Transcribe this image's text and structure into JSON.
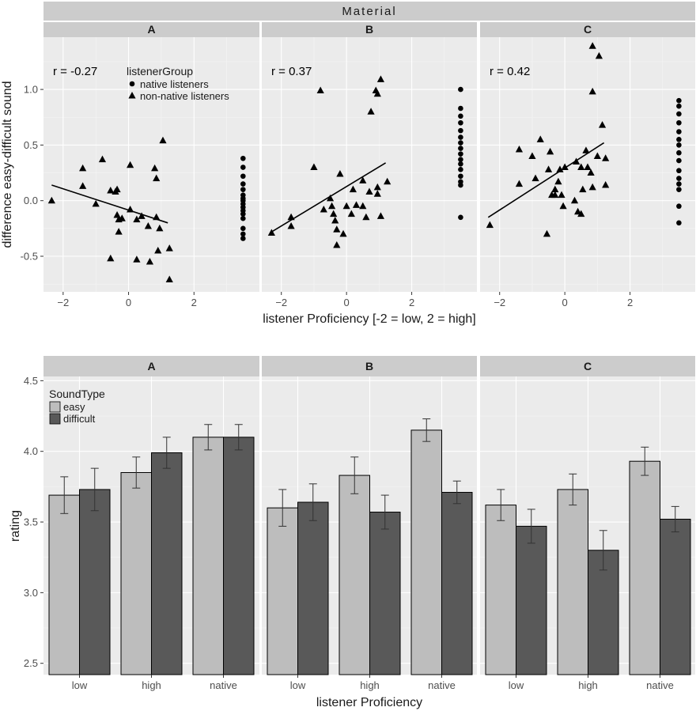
{
  "chart_data": [
    {
      "type": "scatter",
      "facet_title": "Material",
      "xlabel": "listener Proficiency [-2 = low, 2 = high]",
      "ylabel": "difference easy-difficult sound",
      "xlim": [
        -2.6,
        4.0
      ],
      "ylim": [
        -0.82,
        1.47
      ],
      "x_ticks": [
        -2,
        0,
        2
      ],
      "y_ticks": [
        -0.5,
        0.0,
        0.5,
        1.0
      ],
      "y_tick_labels": [
        "-0.5",
        "0.0",
        "0.5",
        "1.0"
      ],
      "legend": {
        "title": "listenerGroup",
        "entries": [
          {
            "label": "native listeners",
            "shape": "circle"
          },
          {
            "label": "non-native listeners",
            "shape": "triangle"
          }
        ]
      },
      "panels": [
        {
          "label": "A",
          "r_text": "r = -0.27",
          "fit": {
            "x": [
              -2.35,
              1.2
            ],
            "y": [
              0.14,
              -0.2
            ]
          },
          "nonnative": [
            [
              -2.35,
              0.0
            ],
            [
              -1.4,
              0.29
            ],
            [
              -1.4,
              0.13
            ],
            [
              -1.0,
              -0.03
            ],
            [
              -0.8,
              0.37
            ],
            [
              -0.55,
              0.09
            ],
            [
              -0.55,
              -0.52
            ],
            [
              -0.4,
              0.08
            ],
            [
              -0.35,
              0.1
            ],
            [
              -0.35,
              -0.13
            ],
            [
              -0.3,
              -0.17
            ],
            [
              -0.3,
              -0.28
            ],
            [
              -0.2,
              -0.16
            ],
            [
              0.05,
              0.32
            ],
            [
              0.05,
              -0.08
            ],
            [
              0.25,
              -0.17
            ],
            [
              0.25,
              -0.53
            ],
            [
              0.4,
              -0.14
            ],
            [
              0.6,
              -0.23
            ],
            [
              0.65,
              -0.55
            ],
            [
              0.8,
              0.29
            ],
            [
              0.85,
              0.2
            ],
            [
              0.85,
              -0.15
            ],
            [
              0.9,
              -0.45
            ],
            [
              0.95,
              -0.25
            ],
            [
              1.05,
              0.54
            ],
            [
              1.25,
              -0.43
            ],
            [
              1.25,
              -0.71
            ]
          ],
          "native": [
            [
              3.5,
              0.38
            ],
            [
              3.5,
              0.3
            ],
            [
              3.5,
              0.22
            ],
            [
              3.5,
              0.15
            ],
            [
              3.5,
              0.1
            ],
            [
              3.5,
              0.05
            ],
            [
              3.5,
              0.02
            ],
            [
              3.5,
              0.0
            ],
            [
              3.5,
              -0.03
            ],
            [
              3.5,
              -0.06
            ],
            [
              3.5,
              -0.09
            ],
            [
              3.5,
              -0.12
            ],
            [
              3.5,
              -0.16
            ],
            [
              3.5,
              -0.25
            ],
            [
              3.5,
              -0.3
            ],
            [
              3.5,
              -0.34
            ]
          ]
        },
        {
          "label": "B",
          "r_text": "r = 0.37",
          "fit": {
            "x": [
              -2.35,
              1.2
            ],
            "y": [
              -0.29,
              0.34
            ]
          },
          "nonnative": [
            [
              -2.3,
              -0.29
            ],
            [
              -1.7,
              -0.15
            ],
            [
              -1.7,
              -0.23
            ],
            [
              -1.0,
              0.3
            ],
            [
              -0.8,
              0.99
            ],
            [
              -0.7,
              -0.08
            ],
            [
              -0.5,
              0.02
            ],
            [
              -0.45,
              -0.05
            ],
            [
              -0.4,
              -0.12
            ],
            [
              -0.35,
              -0.18
            ],
            [
              -0.3,
              -0.26
            ],
            [
              -0.3,
              -0.4
            ],
            [
              -0.2,
              0.24
            ],
            [
              -0.1,
              -0.3
            ],
            [
              0.0,
              -0.05
            ],
            [
              0.15,
              -0.12
            ],
            [
              0.2,
              0.1
            ],
            [
              0.3,
              -0.04
            ],
            [
              0.5,
              0.18
            ],
            [
              0.5,
              -0.05
            ],
            [
              0.6,
              -0.15
            ],
            [
              0.7,
              0.08
            ],
            [
              0.75,
              0.8
            ],
            [
              0.9,
              0.99
            ],
            [
              0.95,
              0.96
            ],
            [
              0.95,
              0.12
            ],
            [
              0.95,
              0.06
            ],
            [
              1.05,
              1.09
            ],
            [
              1.05,
              -0.14
            ],
            [
              1.25,
              0.17
            ]
          ],
          "native": [
            [
              3.5,
              1.0
            ],
            [
              3.5,
              0.83
            ],
            [
              3.5,
              0.76
            ],
            [
              3.5,
              0.7
            ],
            [
              3.5,
              0.63
            ],
            [
              3.5,
              0.57
            ],
            [
              3.5,
              0.52
            ],
            [
              3.5,
              0.47
            ],
            [
              3.5,
              0.42
            ],
            [
              3.5,
              0.37
            ],
            [
              3.5,
              0.33
            ],
            [
              3.5,
              0.28
            ],
            [
              3.5,
              0.22
            ],
            [
              3.5,
              0.17
            ],
            [
              3.5,
              0.14
            ],
            [
              3.5,
              -0.15
            ]
          ]
        },
        {
          "label": "C",
          "r_text": "r = 0.42",
          "fit": {
            "x": [
              -2.35,
              1.2
            ],
            "y": [
              -0.15,
              0.52
            ]
          },
          "nonnative": [
            [
              -2.3,
              -0.22
            ],
            [
              -1.4,
              0.46
            ],
            [
              -1.4,
              0.15
            ],
            [
              -1.0,
              0.4
            ],
            [
              -0.9,
              0.2
            ],
            [
              -0.75,
              0.55
            ],
            [
              -0.55,
              -0.3
            ],
            [
              -0.5,
              0.28
            ],
            [
              -0.45,
              0.44
            ],
            [
              -0.4,
              0.05
            ],
            [
              -0.3,
              0.1
            ],
            [
              -0.3,
              0.05
            ],
            [
              -0.2,
              0.17
            ],
            [
              -0.15,
              0.28
            ],
            [
              -0.1,
              0.05
            ],
            [
              -0.05,
              -0.05
            ],
            [
              0.0,
              0.3
            ],
            [
              0.3,
              0.0
            ],
            [
              0.35,
              0.35
            ],
            [
              0.4,
              -0.1
            ],
            [
              0.5,
              -0.12
            ],
            [
              0.5,
              0.3
            ],
            [
              0.55,
              0.1
            ],
            [
              0.65,
              0.45
            ],
            [
              0.7,
              0.3
            ],
            [
              0.8,
              0.25
            ],
            [
              0.85,
              0.98
            ],
            [
              0.85,
              0.12
            ],
            [
              0.85,
              1.39
            ],
            [
              1.0,
              0.4
            ],
            [
              1.05,
              1.3
            ],
            [
              1.15,
              0.68
            ],
            [
              1.25,
              0.14
            ],
            [
              1.25,
              0.38
            ]
          ],
          "native": [
            [
              3.5,
              0.9
            ],
            [
              3.5,
              0.85
            ],
            [
              3.5,
              0.78
            ],
            [
              3.5,
              0.7
            ],
            [
              3.5,
              0.62
            ],
            [
              3.5,
              0.55
            ],
            [
              3.5,
              0.5
            ],
            [
              3.5,
              0.43
            ],
            [
              3.5,
              0.36
            ],
            [
              3.5,
              0.27
            ],
            [
              3.5,
              0.2
            ],
            [
              3.5,
              0.15
            ],
            [
              3.5,
              0.1
            ],
            [
              3.5,
              -0.05
            ],
            [
              3.5,
              -0.2
            ]
          ]
        }
      ]
    },
    {
      "type": "bar",
      "xlabel": "listener Proficiency",
      "ylabel": "rating",
      "ylim": [
        2.42,
        4.53
      ],
      "y_ticks": [
        2.5,
        3.0,
        3.5,
        4.0,
        4.5
      ],
      "y_tick_labels": [
        "2.5",
        "3.0",
        "3.5",
        "4.0",
        "4.5"
      ],
      "categories": [
        "low",
        "high",
        "native"
      ],
      "legend": {
        "title": "SoundType",
        "entries": [
          {
            "label": "easy",
            "color": "#bdbdbd"
          },
          {
            "label": "difficult",
            "color": "#595959"
          }
        ]
      },
      "panels": [
        {
          "label": "A",
          "series": [
            {
              "name": "easy",
              "values": [
                3.69,
                3.85,
                4.1
              ],
              "err_low": [
                3.56,
                3.74,
                4.01
              ],
              "err_high": [
                3.82,
                3.96,
                4.19
              ]
            },
            {
              "name": "difficult",
              "values": [
                3.73,
                3.99,
                4.1
              ],
              "err_low": [
                3.58,
                3.88,
                4.01
              ],
              "err_high": [
                3.88,
                4.1,
                4.19
              ]
            }
          ]
        },
        {
          "label": "B",
          "series": [
            {
              "name": "easy",
              "values": [
                3.6,
                3.83,
                4.15
              ],
              "err_low": [
                3.47,
                3.7,
                4.07
              ],
              "err_high": [
                3.73,
                3.96,
                4.23
              ]
            },
            {
              "name": "difficult",
              "values": [
                3.64,
                3.57,
                3.71
              ],
              "err_low": [
                3.51,
                3.45,
                3.63
              ],
              "err_high": [
                3.77,
                3.69,
                3.79
              ]
            }
          ]
        },
        {
          "label": "C",
          "series": [
            {
              "name": "easy",
              "values": [
                3.62,
                3.73,
                3.93
              ],
              "err_low": [
                3.51,
                3.62,
                3.83
              ],
              "err_high": [
                3.73,
                3.84,
                4.03
              ]
            },
            {
              "name": "difficult",
              "values": [
                3.47,
                3.3,
                3.52
              ],
              "err_low": [
                3.35,
                3.16,
                3.43
              ],
              "err_high": [
                3.59,
                3.44,
                3.61
              ]
            }
          ]
        }
      ]
    }
  ]
}
